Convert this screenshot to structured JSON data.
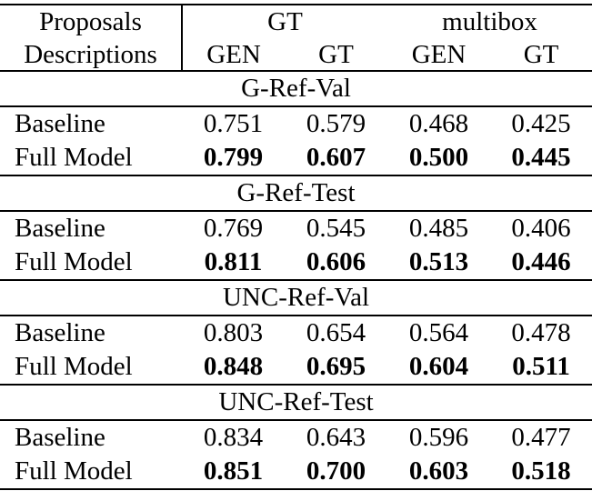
{
  "colors": {
    "background": "#ffffff",
    "text": "#000000",
    "rule": "#000000"
  },
  "table": {
    "header": {
      "col1_line1": "Proposals",
      "col1_line2": "Descriptions",
      "group_gt": "GT",
      "group_multibox": "multibox",
      "sub_gt_gen": "GEN",
      "sub_gt_gt": "GT",
      "sub_mb_gen": "GEN",
      "sub_mb_gt": "GT"
    },
    "sections": [
      {
        "title": "G-Ref-Val",
        "rows": [
          {
            "label": "Baseline",
            "bold": false,
            "values": [
              "0.751",
              "0.579",
              "0.468",
              "0.425"
            ]
          },
          {
            "label": "Full Model",
            "bold": true,
            "values": [
              "0.799",
              "0.607",
              "0.500",
              "0.445"
            ]
          }
        ]
      },
      {
        "title": "G-Ref-Test",
        "rows": [
          {
            "label": "Baseline",
            "bold": false,
            "values": [
              "0.769",
              "0.545",
              "0.485",
              "0.406"
            ]
          },
          {
            "label": "Full Model",
            "bold": true,
            "values": [
              "0.811",
              "0.606",
              "0.513",
              "0.446"
            ]
          }
        ]
      },
      {
        "title": "UNC-Ref-Val",
        "rows": [
          {
            "label": "Baseline",
            "bold": false,
            "values": [
              "0.803",
              "0.654",
              "0.564",
              "0.478"
            ]
          },
          {
            "label": "Full Model",
            "bold": true,
            "values": [
              "0.848",
              "0.695",
              "0.604",
              "0.511"
            ]
          }
        ]
      },
      {
        "title": "UNC-Ref-Test",
        "rows": [
          {
            "label": "Baseline",
            "bold": false,
            "values": [
              "0.834",
              "0.643",
              "0.596",
              "0.477"
            ]
          },
          {
            "label": "Full Model",
            "bold": true,
            "values": [
              "0.851",
              "0.700",
              "0.603",
              "0.518"
            ]
          }
        ]
      }
    ]
  },
  "chart_data": {
    "type": "table",
    "title": "",
    "column_groups": [
      "GT",
      "multibox"
    ],
    "columns": [
      "Proposals/Descriptions",
      "GT-GEN",
      "GT-GT",
      "multibox-GEN",
      "multibox-GT"
    ],
    "sections": [
      {
        "name": "G-Ref-Val",
        "Baseline": [
          0.751,
          0.579,
          0.468,
          0.425
        ],
        "Full Model": [
          0.799,
          0.607,
          0.5,
          0.445
        ]
      },
      {
        "name": "G-Ref-Test",
        "Baseline": [
          0.769,
          0.545,
          0.485,
          0.406
        ],
        "Full Model": [
          0.811,
          0.606,
          0.513,
          0.446
        ]
      },
      {
        "name": "UNC-Ref-Val",
        "Baseline": [
          0.803,
          0.654,
          0.564,
          0.478
        ],
        "Full Model": [
          0.848,
          0.695,
          0.604,
          0.511
        ]
      },
      {
        "name": "UNC-Ref-Test",
        "Baseline": [
          0.834,
          0.643,
          0.596,
          0.477
        ],
        "Full Model": [
          0.851,
          0.7,
          0.603,
          0.518
        ]
      }
    ]
  }
}
